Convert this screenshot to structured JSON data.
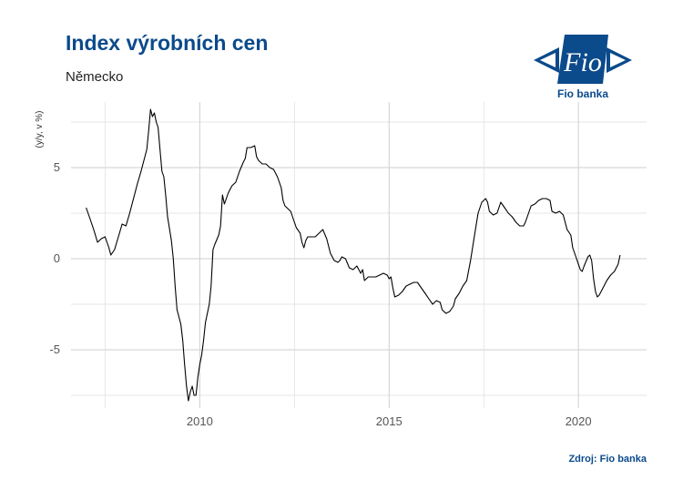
{
  "header": {
    "title": "Index výrobních cen",
    "subtitle": "Německo"
  },
  "logo": {
    "text": "Fio",
    "caption": "Fio banka",
    "color": "#0b4a8b"
  },
  "footer": {
    "source": "Zdroj: Fio banka"
  },
  "chart_data": {
    "type": "line",
    "title": "Index výrobních cen",
    "subtitle": "Německo",
    "xlabel": "",
    "ylabel": "(y/y, v %)",
    "xlim": [
      2006.6,
      2021.8
    ],
    "ylim": [
      -8.2,
      8.6
    ],
    "x_ticks": [
      2010,
      2015,
      2020
    ],
    "x_tick_labels": [
      "2010",
      "2015",
      "2020"
    ],
    "y_ticks": [
      -5,
      0,
      5
    ],
    "y_tick_labels": [
      "-5",
      "0",
      "5"
    ],
    "grid": true,
    "line_color": "#000000",
    "series": [
      {
        "points": [
          [
            2007.0,
            2.8
          ],
          [
            2007.1,
            2.2
          ],
          [
            2007.2,
            1.6
          ],
          [
            2007.3,
            0.9
          ],
          [
            2007.4,
            1.1
          ],
          [
            2007.5,
            1.2
          ],
          [
            2007.6,
            0.6
          ],
          [
            2007.65,
            0.2
          ],
          [
            2007.75,
            0.5
          ],
          [
            2007.85,
            1.2
          ],
          [
            2007.95,
            1.9
          ],
          [
            2008.05,
            1.8
          ],
          [
            2008.15,
            2.5
          ],
          [
            2008.25,
            3.3
          ],
          [
            2008.35,
            4.1
          ],
          [
            2008.45,
            4.8
          ],
          [
            2008.55,
            5.6
          ],
          [
            2008.6,
            6.0
          ],
          [
            2008.65,
            7.0
          ],
          [
            2008.7,
            8.2
          ],
          [
            2008.75,
            7.8
          ],
          [
            2008.8,
            8.0
          ],
          [
            2008.85,
            7.5
          ],
          [
            2008.9,
            7.2
          ],
          [
            2008.95,
            6.0
          ],
          [
            2009.0,
            4.8
          ],
          [
            2009.05,
            4.5
          ],
          [
            2009.1,
            3.5
          ],
          [
            2009.15,
            2.3
          ],
          [
            2009.25,
            1.0
          ],
          [
            2009.3,
            0.0
          ],
          [
            2009.35,
            -1.5
          ],
          [
            2009.4,
            -2.8
          ],
          [
            2009.5,
            -3.6
          ],
          [
            2009.55,
            -4.5
          ],
          [
            2009.6,
            -5.8
          ],
          [
            2009.65,
            -7.0
          ],
          [
            2009.7,
            -7.8
          ],
          [
            2009.75,
            -7.3
          ],
          [
            2009.8,
            -7.0
          ],
          [
            2009.85,
            -7.5
          ],
          [
            2009.9,
            -7.5
          ],
          [
            2009.95,
            -6.5
          ],
          [
            2010.0,
            -5.8
          ],
          [
            2010.05,
            -5.3
          ],
          [
            2010.1,
            -4.5
          ],
          [
            2010.15,
            -3.5
          ],
          [
            2010.2,
            -3.0
          ],
          [
            2010.25,
            -2.5
          ],
          [
            2010.3,
            -1.5
          ],
          [
            2010.35,
            0.5
          ],
          [
            2010.4,
            0.8
          ],
          [
            2010.5,
            1.3
          ],
          [
            2010.55,
            1.8
          ],
          [
            2010.6,
            3.5
          ],
          [
            2010.65,
            3.0
          ],
          [
            2010.7,
            3.3
          ],
          [
            2010.75,
            3.6
          ],
          [
            2010.8,
            3.8
          ],
          [
            2010.85,
            4.0
          ],
          [
            2010.95,
            4.2
          ],
          [
            2011.05,
            4.8
          ],
          [
            2011.15,
            5.3
          ],
          [
            2011.2,
            5.5
          ],
          [
            2011.25,
            6.1
          ],
          [
            2011.35,
            6.1
          ],
          [
            2011.45,
            6.2
          ],
          [
            2011.5,
            5.6
          ],
          [
            2011.55,
            5.4
          ],
          [
            2011.65,
            5.2
          ],
          [
            2011.75,
            5.2
          ],
          [
            2011.85,
            5.0
          ],
          [
            2011.95,
            4.9
          ],
          [
            2012.05,
            4.5
          ],
          [
            2012.15,
            3.9
          ],
          [
            2012.2,
            3.2
          ],
          [
            2012.25,
            2.9
          ],
          [
            2012.35,
            2.7
          ],
          [
            2012.4,
            2.6
          ],
          [
            2012.5,
            2.0
          ],
          [
            2012.55,
            1.7
          ],
          [
            2012.65,
            1.4
          ],
          [
            2012.7,
            0.9
          ],
          [
            2012.75,
            0.6
          ],
          [
            2012.8,
            1.0
          ],
          [
            2012.85,
            1.2
          ],
          [
            2012.95,
            1.2
          ],
          [
            2013.05,
            1.2
          ],
          [
            2013.15,
            1.4
          ],
          [
            2013.25,
            1.6
          ],
          [
            2013.35,
            1.1
          ],
          [
            2013.45,
            0.3
          ],
          [
            2013.55,
            -0.1
          ],
          [
            2013.65,
            -0.2
          ],
          [
            2013.7,
            -0.1
          ],
          [
            2013.75,
            0.1
          ],
          [
            2013.85,
            0.0
          ],
          [
            2013.95,
            -0.5
          ],
          [
            2014.05,
            -0.6
          ],
          [
            2014.15,
            -0.4
          ],
          [
            2014.25,
            -0.8
          ],
          [
            2014.3,
            -0.6
          ],
          [
            2014.35,
            -1.2
          ],
          [
            2014.45,
            -1.0
          ],
          [
            2014.55,
            -1.0
          ],
          [
            2014.65,
            -1.0
          ],
          [
            2014.75,
            -0.9
          ],
          [
            2014.85,
            -0.8
          ],
          [
            2014.95,
            -0.9
          ],
          [
            2015.0,
            -1.1
          ],
          [
            2015.05,
            -1.0
          ],
          [
            2015.1,
            -1.6
          ],
          [
            2015.15,
            -2.1
          ],
          [
            2015.25,
            -2.0
          ],
          [
            2015.35,
            -1.8
          ],
          [
            2015.45,
            -1.5
          ],
          [
            2015.55,
            -1.4
          ],
          [
            2015.65,
            -1.3
          ],
          [
            2015.75,
            -1.3
          ],
          [
            2015.85,
            -1.6
          ],
          [
            2015.95,
            -1.9
          ],
          [
            2016.05,
            -2.2
          ],
          [
            2016.15,
            -2.5
          ],
          [
            2016.25,
            -2.3
          ],
          [
            2016.35,
            -2.4
          ],
          [
            2016.4,
            -2.8
          ],
          [
            2016.5,
            -3.0
          ],
          [
            2016.6,
            -2.9
          ],
          [
            2016.7,
            -2.6
          ],
          [
            2016.75,
            -2.2
          ],
          [
            2016.85,
            -1.9
          ],
          [
            2016.95,
            -1.5
          ],
          [
            2017.05,
            -1.2
          ],
          [
            2017.15,
            -0.1
          ],
          [
            2017.25,
            1.2
          ],
          [
            2017.35,
            2.5
          ],
          [
            2017.45,
            3.1
          ],
          [
            2017.55,
            3.3
          ],
          [
            2017.6,
            3.1
          ],
          [
            2017.65,
            2.6
          ],
          [
            2017.75,
            2.4
          ],
          [
            2017.85,
            2.5
          ],
          [
            2017.95,
            3.1
          ],
          [
            2018.05,
            2.8
          ],
          [
            2018.15,
            2.5
          ],
          [
            2018.25,
            2.3
          ],
          [
            2018.35,
            2.0
          ],
          [
            2018.45,
            1.8
          ],
          [
            2018.55,
            1.8
          ],
          [
            2018.6,
            2.0
          ],
          [
            2018.65,
            2.3
          ],
          [
            2018.75,
            2.9
          ],
          [
            2018.85,
            3.0
          ],
          [
            2018.95,
            3.2
          ],
          [
            2019.05,
            3.3
          ],
          [
            2019.15,
            3.3
          ],
          [
            2019.25,
            3.2
          ],
          [
            2019.3,
            2.6
          ],
          [
            2019.4,
            2.5
          ],
          [
            2019.5,
            2.6
          ],
          [
            2019.6,
            2.4
          ],
          [
            2019.7,
            1.6
          ],
          [
            2019.8,
            1.3
          ],
          [
            2019.85,
            0.6
          ],
          [
            2019.95,
            0.0
          ],
          [
            2020.05,
            -0.6
          ],
          [
            2020.1,
            -0.7
          ],
          [
            2020.15,
            -0.4
          ],
          [
            2020.25,
            0.1
          ],
          [
            2020.3,
            0.2
          ],
          [
            2020.35,
            -0.1
          ],
          [
            2020.4,
            -1.1
          ],
          [
            2020.45,
            -1.8
          ],
          [
            2020.5,
            -2.1
          ],
          [
            2020.55,
            -2.0
          ],
          [
            2020.65,
            -1.6
          ],
          [
            2020.75,
            -1.2
          ],
          [
            2020.85,
            -0.9
          ],
          [
            2020.95,
            -0.7
          ],
          [
            2021.0,
            -0.5
          ],
          [
            2021.05,
            -0.3
          ],
          [
            2021.1,
            0.2
          ]
        ]
      }
    ]
  }
}
